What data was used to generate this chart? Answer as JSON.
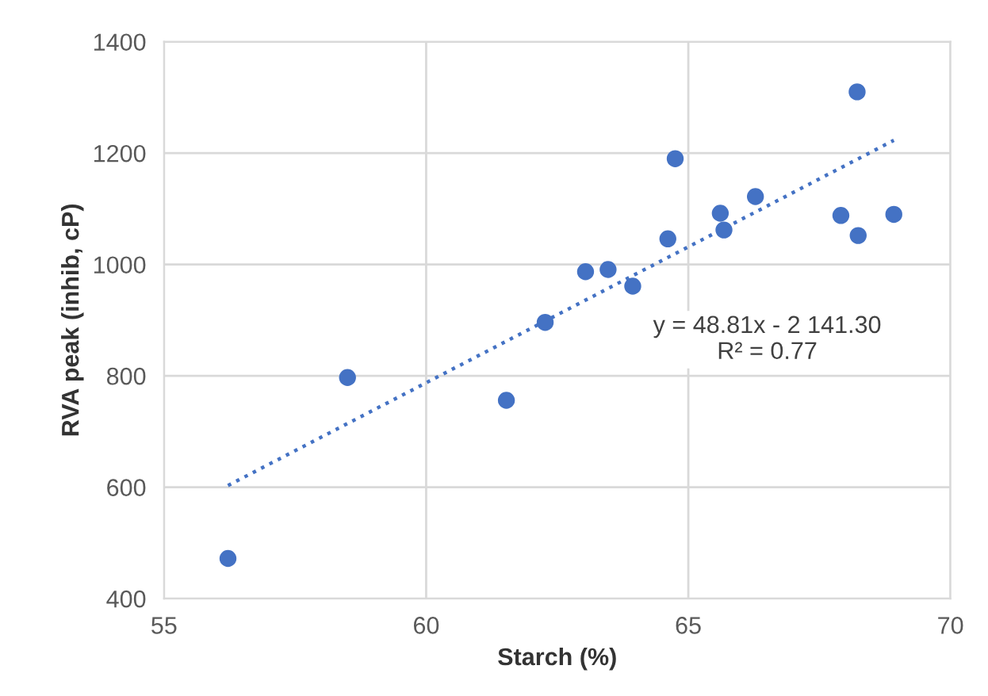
{
  "chart_data": {
    "type": "scatter",
    "xlabel": "Starch (%)",
    "ylabel": "RVA peak (inhib, cP)",
    "xlim": [
      55,
      70
    ],
    "xticks": [
      55,
      60,
      65,
      70
    ],
    "ylim": [
      400,
      1400
    ],
    "yticks": [
      400,
      600,
      800,
      1000,
      1200,
      1400
    ],
    "grid": true,
    "marker": "circle",
    "series": [
      {
        "color": "#4472c4",
        "x": [
          56.22,
          58.5,
          61.53,
          62.27,
          63.04,
          63.47,
          63.94,
          64.61,
          64.75,
          65.61,
          65.68,
          66.28,
          67.91,
          68.22,
          68.24,
          68.92
        ],
        "values": [
          472,
          797,
          756,
          896,
          987,
          991,
          961,
          1046,
          1190,
          1092,
          1062,
          1122,
          1088,
          1310,
          1052,
          1090
        ]
      },
      {
        "type": "line",
        "color": "#4472c4",
        "line_style": "dotted",
        "marker": "none",
        "x": [
          56.22,
          68.92
        ],
        "values": [
          603,
          1223
        ]
      }
    ],
    "annotations": [
      "y = 48.81x - 2 141.30\nR² = 0.77"
    ]
  }
}
